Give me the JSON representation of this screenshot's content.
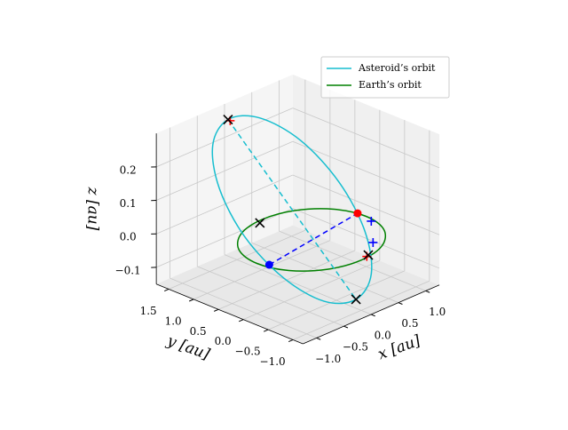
{
  "chart_data": {
    "type": "line3d",
    "xlabel": "x [au]",
    "ylabel": "y [au]",
    "zlabel": "z [au]",
    "xlim": [
      -1.25,
      1.25
    ],
    "ylim": [
      -1.2,
      1.75
    ],
    "zlim": [
      -0.15,
      0.3
    ],
    "xticks": [
      {
        "value": -1.0,
        "label": "−1.0"
      },
      {
        "value": -0.5,
        "label": "−0.5"
      },
      {
        "value": 0.0,
        "label": "0.0"
      },
      {
        "value": 0.5,
        "label": "0.5"
      },
      {
        "value": 1.0,
        "label": "1.0"
      }
    ],
    "yticks": [
      {
        "value": -1.0,
        "label": "−1.0"
      },
      {
        "value": -0.5,
        "label": "−0.5"
      },
      {
        "value": 0.0,
        "label": "0.0"
      },
      {
        "value": 0.5,
        "label": "0.5"
      },
      {
        "value": 1.0,
        "label": "1.0"
      },
      {
        "value": 1.5,
        "label": "1.5"
      }
    ],
    "zticks": [
      {
        "value": -0.1,
        "label": "−0.1"
      },
      {
        "value": 0.0,
        "label": "0.0"
      },
      {
        "value": 0.1,
        "label": "0.1"
      },
      {
        "value": 0.2,
        "label": "0.2"
      }
    ],
    "grid": true,
    "legend": "upper right",
    "series": [
      {
        "name": "Asteroid’s orbit",
        "color": "#17becf",
        "x": [
          -0.2,
          0.33,
          0.77,
          0.99,
          0.94,
          0.64,
          0.15,
          -0.38,
          -0.81,
          -1.04,
          -0.99,
          -0.68
        ],
        "y": [
          1.46,
          1.4,
          1.06,
          0.53,
          -0.04,
          -0.5,
          -0.73,
          -0.67,
          -0.33,
          0.2,
          0.77,
          1.24
        ],
        "z": [
          0.285,
          0.256,
          0.178,
          0.07,
          -0.037,
          -0.116,
          -0.144,
          -0.116,
          -0.037,
          0.07,
          0.178,
          0.256
        ]
      },
      {
        "name": "Earth’s orbit",
        "color": "#008000",
        "x": [
          1.0,
          0.87,
          0.5,
          0.0,
          -0.5,
          -0.87,
          -1.0,
          -0.87,
          -0.5,
          0.0,
          0.5,
          0.87
        ],
        "y": [
          0.0,
          0.5,
          0.87,
          1.0,
          0.87,
          0.5,
          0.0,
          -0.5,
          -0.87,
          -1.0,
          -0.87,
          -0.5
        ],
        "z": [
          0,
          0,
          0,
          0,
          0,
          0,
          0,
          0,
          0,
          0,
          0,
          0
        ]
      }
    ],
    "lines": [
      {
        "color": "#17becf",
        "x": [
          -0.2,
          0.15
        ],
        "y": [
          1.46,
          -0.73
        ],
        "z": [
          0.285,
          -0.144
        ]
      },
      {
        "color": "#0000ff",
        "x": [
          -0.92,
          0.99
        ],
        "y": [
          -0.16,
          0.16
        ],
        "z": [
          0,
          0
        ]
      }
    ],
    "markers": [
      {
        "symbol": "plus",
        "color": "#ff0000",
        "x": [
          -0.17,
          0.13
        ],
        "y": [
          1.45,
          -0.97
        ],
        "z": [
          0.28,
          0.0
        ]
      },
      {
        "symbol": "plus",
        "color": "#0000ff",
        "x": [
          0.94,
          0.49
        ],
        "y": [
          -0.17,
          -0.7
        ],
        "z": [
          0,
          0
        ]
      },
      {
        "symbol": "cross",
        "color": "#000000",
        "x": [
          -0.2,
          0.15,
          -0.09,
          0.175
        ],
        "y": [
          1.46,
          -0.73,
          0.94,
          -0.95
        ],
        "z": [
          0.285,
          -0.144,
          0,
          0
        ]
      },
      {
        "symbol": "dot",
        "color": "#ff0000",
        "x": [
          0.99
        ],
        "y": [
          0.16
        ],
        "z": [
          0
        ]
      },
      {
        "symbol": "dot",
        "color": "#0000ff",
        "x": [
          -0.92
        ],
        "y": [
          -0.16
        ],
        "z": [
          0
        ]
      }
    ]
  }
}
